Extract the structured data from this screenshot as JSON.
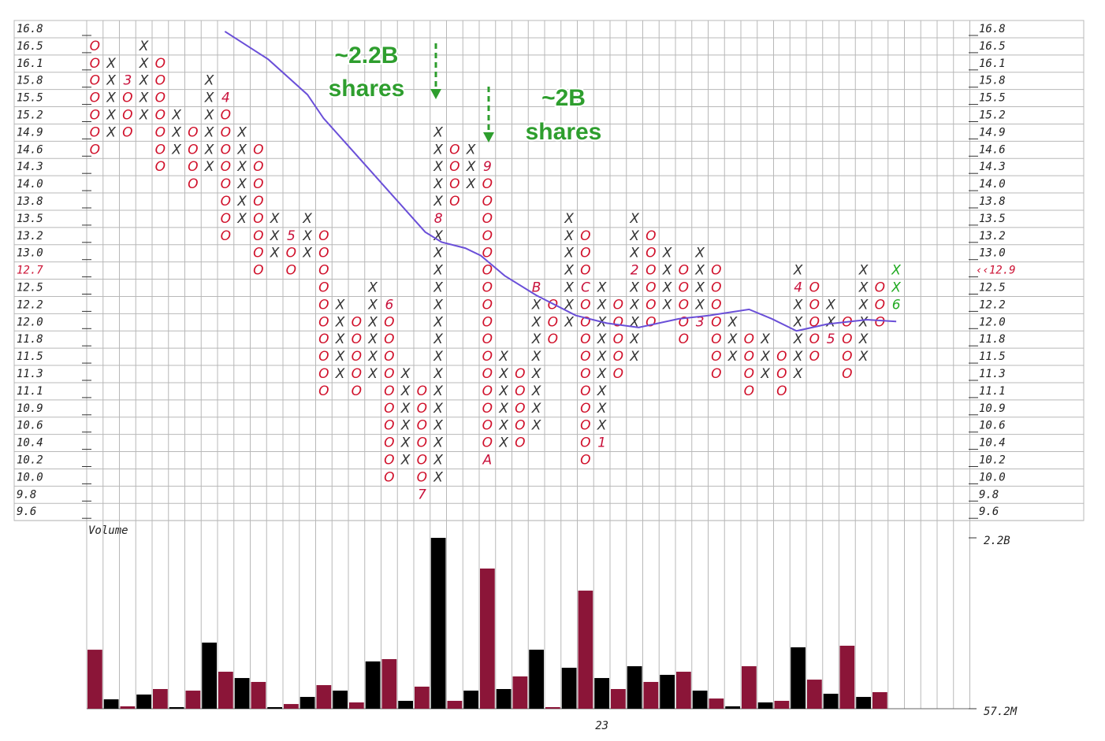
{
  "chart_data": {
    "type": "point-and-figure",
    "yticks": [
      16.8,
      16.5,
      16.1,
      15.8,
      15.5,
      15.2,
      14.9,
      14.6,
      14.3,
      {
        "value": 14,
        "label": "14.0"
      },
      13.8,
      13.5,
      13.2,
      {
        "value": 13,
        "label": "13.0"
      },
      12.7,
      12.5,
      12.2,
      {
        "value": 12,
        "label": "12.0"
      },
      11.8,
      11.5,
      11.3,
      11.1,
      10.9,
      10.6,
      10.4,
      10.2,
      {
        "value": 10,
        "label": "10.0"
      },
      9.8,
      9.6
    ],
    "current_price": {
      "value": 12.9,
      "label": "‹‹12.9",
      "color": "#cc1133"
    },
    "colors": {
      "X": "#333333",
      "O": "#d0102a"
    },
    "marker_color": "#c8103a",
    "columns": [
      {
        "type": "O",
        "high": 16.5,
        "low": 14.6,
        "markers": []
      },
      {
        "type": "X",
        "high": 16.1,
        "low": 14.9,
        "markers": []
      },
      {
        "type": "O",
        "high": 15.8,
        "low": 14.9,
        "markers": [
          {
            "value": 15.8,
            "label": "3"
          }
        ]
      },
      {
        "type": "X",
        "high": 16.5,
        "low": 15.2,
        "markers": []
      },
      {
        "type": "O",
        "high": 16.1,
        "low": 14.3,
        "markers": []
      },
      {
        "type": "X",
        "high": 15.2,
        "low": 14.6,
        "markers": []
      },
      {
        "type": "O",
        "high": 14.9,
        "low": 14,
        "markers": []
      },
      {
        "type": "X",
        "high": 15.8,
        "low": 14.3,
        "markers": []
      },
      {
        "type": "O",
        "high": 15.5,
        "low": 13.2,
        "markers": [
          {
            "value": 15.5,
            "label": "4"
          }
        ]
      },
      {
        "type": "X",
        "high": 14.9,
        "low": 13.5,
        "markers": []
      },
      {
        "type": "O",
        "high": 14.6,
        "low": 12.7,
        "markers": []
      },
      {
        "type": "X",
        "high": 13.5,
        "low": 13,
        "markers": []
      },
      {
        "type": "O",
        "high": 13.2,
        "low": 12.7,
        "markers": [
          {
            "value": 13.2,
            "label": "5"
          }
        ]
      },
      {
        "type": "X",
        "high": 13.5,
        "low": 13,
        "markers": []
      },
      {
        "type": "O",
        "high": 13.2,
        "low": 11.1,
        "markers": []
      },
      {
        "type": "X",
        "high": 12.2,
        "low": 11.3,
        "markers": []
      },
      {
        "type": "O",
        "high": 12,
        "low": 11.1,
        "markers": []
      },
      {
        "type": "X",
        "high": 12.5,
        "low": 11.3,
        "markers": []
      },
      {
        "type": "O",
        "high": 12.2,
        "low": 10,
        "markers": [
          {
            "value": 12.2,
            "label": "6"
          }
        ]
      },
      {
        "type": "X",
        "high": 11.3,
        "low": 10.2,
        "markers": []
      },
      {
        "type": "O",
        "high": 11.1,
        "low": 9.8,
        "markers": [
          {
            "value": 9.8,
            "label": "7"
          }
        ]
      },
      {
        "type": "X",
        "high": 14.9,
        "low": 10,
        "markers": [
          {
            "value": 13.5,
            "label": "8"
          }
        ]
      },
      {
        "type": "O",
        "high": 14.6,
        "low": 13.8,
        "markers": []
      },
      {
        "type": "X",
        "high": 14.6,
        "low": 14,
        "markers": []
      },
      {
        "type": "O",
        "high": 14.3,
        "low": 10.2,
        "markers": [
          {
            "value": 14.3,
            "label": "9"
          },
          {
            "value": 10.2,
            "label": "A"
          }
        ]
      },
      {
        "type": "X",
        "high": 11.5,
        "low": 10.4,
        "markers": []
      },
      {
        "type": "O",
        "high": 11.3,
        "low": 10.4,
        "markers": []
      },
      {
        "type": "X",
        "high": 12.5,
        "low": 10.6,
        "markers": [
          {
            "value": 12.5,
            "label": "B"
          }
        ]
      },
      {
        "type": "O",
        "high": 12.2,
        "low": 11.8,
        "markers": []
      },
      {
        "type": "X",
        "high": 13.5,
        "low": 12,
        "markers": []
      },
      {
        "type": "O",
        "high": 13.2,
        "low": 10.2,
        "markers": [
          {
            "value": 12.5,
            "label": "C"
          }
        ]
      },
      {
        "type": "X",
        "high": 12.5,
        "low": 10.4,
        "markers": [
          {
            "value": 10.4,
            "label": "1"
          }
        ]
      },
      {
        "type": "O",
        "high": 12.2,
        "low": 11.3,
        "markers": []
      },
      {
        "type": "X",
        "high": 13.5,
        "low": 11.5,
        "markers": [
          {
            "value": 12.7,
            "label": "2"
          }
        ]
      },
      {
        "type": "O",
        "high": 13.2,
        "low": 12,
        "markers": []
      },
      {
        "type": "X",
        "high": 13,
        "low": 12.2,
        "markers": []
      },
      {
        "type": "O",
        "high": 12.7,
        "low": 11.8,
        "markers": []
      },
      {
        "type": "X",
        "high": 13,
        "low": 12,
        "markers": [
          {
            "value": 12,
            "label": "3"
          }
        ]
      },
      {
        "type": "O",
        "high": 12.7,
        "low": 11.3,
        "markers": []
      },
      {
        "type": "X",
        "high": 12,
        "low": 11.5,
        "markers": []
      },
      {
        "type": "O",
        "high": 11.8,
        "low": 11.1,
        "markers": []
      },
      {
        "type": "X",
        "high": 11.8,
        "low": 11.3,
        "markers": []
      },
      {
        "type": "O",
        "high": 11.5,
        "low": 11.1,
        "markers": []
      },
      {
        "type": "X",
        "high": 12.7,
        "low": 11.3,
        "markers": [
          {
            "value": 12.5,
            "label": "4"
          }
        ]
      },
      {
        "type": "O",
        "high": 12.5,
        "low": 11.5,
        "markers": []
      },
      {
        "type": "X",
        "high": 12.2,
        "low": 11.8,
        "markers": [
          {
            "value": 11.8,
            "label": "5"
          }
        ]
      },
      {
        "type": "O",
        "high": 12,
        "low": 11.3,
        "markers": []
      },
      {
        "type": "X",
        "high": 12.7,
        "low": 11.5,
        "markers": []
      },
      {
        "type": "O",
        "high": 12.5,
        "low": 12,
        "markers": []
      },
      {
        "type": "X",
        "high": 12.7,
        "low": 12.2,
        "markers": [
          {
            "value": 12.2,
            "label": "6"
          }
        ],
        "color": "#22aa22"
      }
    ],
    "moving_average": {
      "color": "#6a4fd8",
      "x": [
        7.95,
        10.6,
        13,
        13.98,
        15.9,
        18.3,
        20.2,
        21.2,
        22.65,
        23.6,
        25.06,
        26.99,
        29.4,
        31.3,
        33.25,
        35.7,
        37.6,
        40,
        41.4,
        42.9,
        44.8,
        47.2,
        49
      ],
      "y": [
        16.76,
        16.2,
        15.56,
        15.15,
        14.54,
        13.85,
        13.27,
        13.13,
        13.06,
        12.96,
        12.64,
        12.37,
        12.08,
        11.99,
        11.94,
        12.04,
        12.08,
        12.15,
        12.04,
        11.9,
        11.98,
        12.03,
        12.01
      ]
    },
    "volume": {
      "label": "Volume",
      "colors": {
        "X": "#000000",
        "O": "#8b1538"
      },
      "ylim": [
        57200000,
        2200000000
      ],
      "yticks": [
        {
          "value": 2200000000,
          "label": "2.2B"
        },
        {
          "value": 57200000,
          "label": "57.2M"
        }
      ],
      "values": [
        797000000,
        175000000,
        87000000,
        235000000,
        304000000,
        77000000,
        284000000,
        886000000,
        521000000,
        442000000,
        393000000,
        77000000,
        116000000,
        205000000,
        353000000,
        284000000,
        136000000,
        650000000,
        679000000,
        156000000,
        334000000,
        2200000000,
        156000000,
        284000000,
        1815000000,
        304000000,
        462000000,
        797000000,
        77000000,
        571000000,
        1538000000,
        442000000,
        304000000,
        590000000,
        393000000,
        482000000,
        521000000,
        284000000,
        185000000,
        87000000,
        590000000,
        136000000,
        156000000,
        827000000,
        422000000,
        245000000,
        847000000,
        205000000,
        265000000,
        null
      ]
    },
    "x_labels": [
      {
        "column": 31,
        "label": "23"
      }
    ],
    "annotations": [
      {
        "lines": [
          "~2.2B",
          "shares"
        ]
      },
      {
        "lines": [
          "~2B",
          "shares"
        ]
      }
    ]
  }
}
